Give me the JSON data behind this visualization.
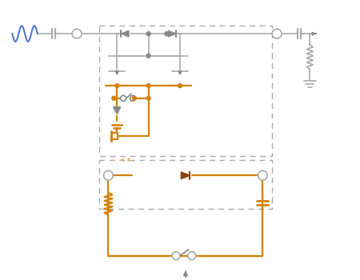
{
  "orange": "#d4820a",
  "orange_dark": "#8B4500",
  "gray": "#aaaaaa",
  "gray_dark": "#888888",
  "blue": "#5577cc",
  "light_orange": "#e8b870",
  "bg": "#ffffff",
  "lw_gray": 1.2,
  "lw_orange": 1.6
}
